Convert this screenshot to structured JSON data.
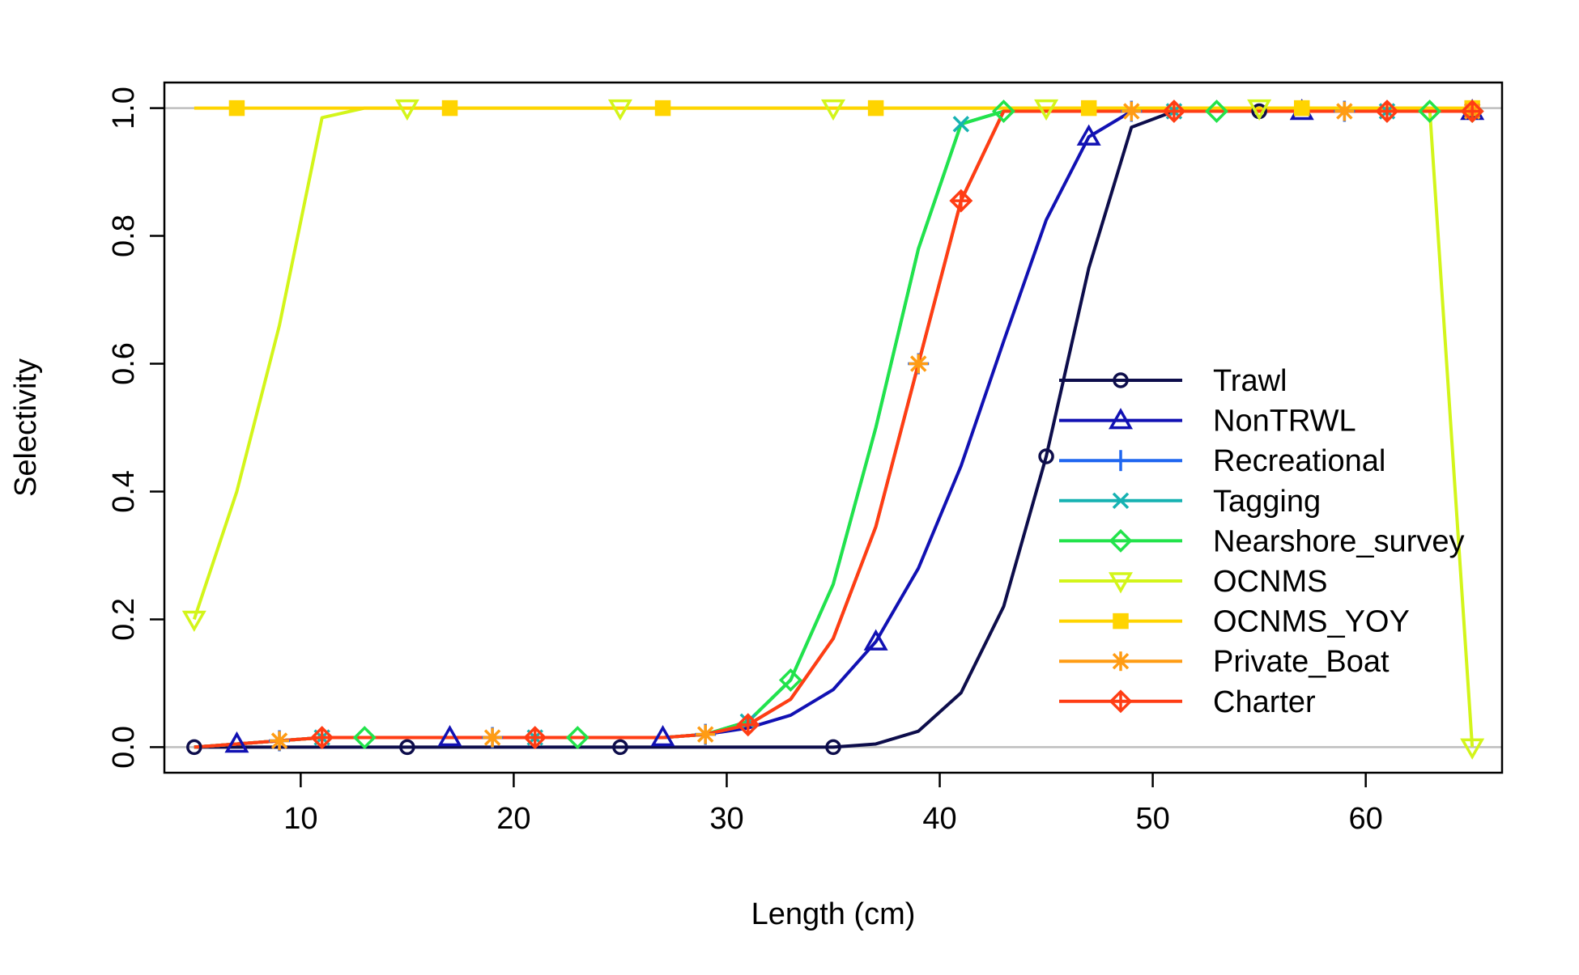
{
  "chart_data": {
    "type": "line",
    "title": "",
    "xlabel": "Length (cm)",
    "ylabel": "Selectivity",
    "xlim": [
      3.6,
      66.4
    ],
    "ylim": [
      -0.04,
      1.04
    ],
    "xticks": [
      10,
      20,
      30,
      40,
      50,
      60
    ],
    "yticks": [
      0.0,
      0.2,
      0.4,
      0.6,
      0.8,
      1.0
    ],
    "xtick_labels": [
      "10",
      "20",
      "30",
      "40",
      "50",
      "60"
    ],
    "ytick_labels": [
      "0.0",
      "0.2",
      "0.4",
      "0.6",
      "0.8",
      "1.0"
    ],
    "reference_lines": [
      0,
      1
    ],
    "reference_line_color": "#bebebe",
    "legend_position": "center-right",
    "x": [
      5,
      7,
      9,
      11,
      13,
      15,
      17,
      19,
      21,
      23,
      25,
      27,
      29,
      31,
      33,
      35,
      37,
      39,
      41,
      43,
      45,
      47,
      49,
      51,
      53,
      55,
      57,
      59,
      61,
      63,
      65
    ],
    "series": [
      {
        "name": "Trawl",
        "color": "#0d0d4b",
        "marker": "circle",
        "marker_offset": 0,
        "values": [
          0.0,
          0.0,
          0.0,
          0.0,
          0.0,
          0.0,
          0.0,
          0.0,
          0.0,
          0.0,
          0.0,
          0.0,
          0.0,
          0.0,
          0.0,
          0.0,
          0.005,
          0.025,
          0.085,
          0.22,
          0.455,
          0.75,
          0.97,
          0.995,
          0.995,
          0.995,
          0.995,
          0.995,
          0.995,
          0.995,
          0.995
        ]
      },
      {
        "name": "NonTRWL",
        "color": "#1111b3",
        "marker": "triangle-up",
        "marker_offset": 1,
        "values": [
          0.0,
          0.005,
          0.01,
          0.015,
          0.015,
          0.015,
          0.015,
          0.015,
          0.015,
          0.015,
          0.015,
          0.015,
          0.02,
          0.03,
          0.05,
          0.09,
          0.165,
          0.28,
          0.44,
          0.635,
          0.825,
          0.955,
          0.995,
          0.995,
          0.995,
          0.995,
          0.995,
          0.995,
          0.995,
          0.995,
          0.995
        ]
      },
      {
        "name": "Recreational",
        "color": "#1f66f0",
        "marker": "plus",
        "marker_offset": 2,
        "values": [
          0.0,
          0.005,
          0.01,
          0.015,
          0.015,
          0.015,
          0.015,
          0.015,
          0.015,
          0.015,
          0.015,
          0.015,
          0.02,
          0.035,
          0.075,
          0.17,
          0.345,
          0.6,
          0.855,
          0.995,
          0.995,
          0.995,
          0.995,
          0.995,
          0.995,
          0.995,
          0.995,
          0.995,
          0.995,
          0.995,
          0.995
        ]
      },
      {
        "name": "Tagging",
        "color": "#16b2b2",
        "marker": "cross",
        "marker_offset": 3,
        "values": [
          0.0,
          0.005,
          0.01,
          0.015,
          0.015,
          0.015,
          0.015,
          0.015,
          0.015,
          0.015,
          0.015,
          0.015,
          0.02,
          0.04,
          0.105,
          0.255,
          0.5,
          0.78,
          0.975,
          0.995,
          0.995,
          0.995,
          0.995,
          0.995,
          0.995,
          0.995,
          0.995,
          0.995,
          0.995,
          0.995,
          0.995
        ]
      },
      {
        "name": "Nearshore_survey",
        "color": "#22e34b",
        "marker": "diamond",
        "marker_offset": 4,
        "values": [
          0.0,
          0.005,
          0.01,
          0.015,
          0.015,
          0.015,
          0.015,
          0.015,
          0.015,
          0.015,
          0.015,
          0.015,
          0.02,
          0.04,
          0.105,
          0.255,
          0.5,
          0.78,
          0.975,
          0.995,
          0.995,
          0.995,
          0.995,
          0.995,
          0.995,
          0.995,
          0.995,
          0.995,
          0.995,
          0.995,
          0.995
        ]
      },
      {
        "name": "OCNMS",
        "color": "#d3f51a",
        "marker": "triangle-down",
        "marker_offset": 0,
        "values": [
          0.2,
          0.4,
          0.66,
          0.985,
          1.0,
          1.0,
          1.0,
          1.0,
          1.0,
          1.0,
          1.0,
          1.0,
          1.0,
          1.0,
          1.0,
          1.0,
          1.0,
          1.0,
          1.0,
          1.0,
          1.0,
          1.0,
          1.0,
          1.0,
          1.0,
          1.0,
          1.0,
          1.0,
          1.0,
          1.0,
          0.0
        ]
      },
      {
        "name": "OCNMS_YOY",
        "color": "#ffd400",
        "marker": "square",
        "marker_offset": 1,
        "values": [
          1.0,
          1.0,
          1.0,
          1.0,
          1.0,
          1.0,
          1.0,
          1.0,
          1.0,
          1.0,
          1.0,
          1.0,
          1.0,
          1.0,
          1.0,
          1.0,
          1.0,
          1.0,
          1.0,
          1.0,
          1.0,
          1.0,
          1.0,
          1.0,
          1.0,
          1.0,
          1.0,
          1.0,
          1.0,
          1.0,
          1.0
        ]
      },
      {
        "name": "Private_Boat",
        "color": "#ff9c14",
        "marker": "asterisk",
        "marker_offset": 2,
        "values": [
          0.0,
          0.005,
          0.01,
          0.015,
          0.015,
          0.015,
          0.015,
          0.015,
          0.015,
          0.015,
          0.015,
          0.015,
          0.02,
          0.035,
          0.075,
          0.17,
          0.345,
          0.6,
          0.855,
          0.995,
          0.995,
          0.995,
          0.995,
          0.995,
          0.995,
          0.995,
          0.995,
          0.995,
          0.995,
          0.995,
          0.995
        ]
      },
      {
        "name": "Charter",
        "color": "#ff3d14",
        "marker": "diamond-plus",
        "marker_offset": 3,
        "values": [
          0.0,
          0.005,
          0.01,
          0.015,
          0.015,
          0.015,
          0.015,
          0.015,
          0.015,
          0.015,
          0.015,
          0.015,
          0.02,
          0.035,
          0.075,
          0.17,
          0.345,
          0.6,
          0.855,
          0.995,
          0.995,
          0.995,
          0.995,
          0.995,
          0.995,
          0.995,
          0.995,
          0.995,
          0.995,
          0.995,
          0.995
        ]
      }
    ]
  }
}
